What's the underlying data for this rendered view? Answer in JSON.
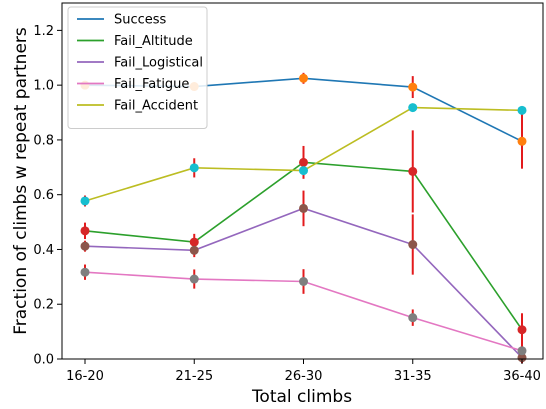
{
  "chart_data": {
    "type": "line",
    "xlabel": "Total climbs",
    "ylabel": "Fraction of climbs w repeat partners",
    "categories": [
      "16-20",
      "21-25",
      "26-30",
      "31-35",
      "36-40"
    ],
    "ylim": [
      0,
      1.3
    ],
    "yticks": [
      0.0,
      0.2,
      0.4,
      0.6,
      0.8,
      1.0,
      1.2
    ],
    "ytick_labels": [
      "0.0",
      "0.2",
      "0.4",
      "0.6",
      "0.8",
      "1.0",
      "1.2"
    ],
    "grid": false,
    "legend_position": "top-left",
    "series": [
      {
        "name": "Success",
        "color": "#1f77b4",
        "marker_color": "#ff7f0e",
        "values": [
          1.0,
          0.995,
          1.025,
          0.993,
          0.795
        ],
        "errors": [
          0.0,
          0.0,
          0.02,
          0.04,
          0.1
        ]
      },
      {
        "name": "Fail_Altitude",
        "color": "#2ca02c",
        "marker_color": "#d62728",
        "values": [
          0.468,
          0.427,
          0.718,
          0.685,
          0.107
        ],
        "errors": [
          0.03,
          0.03,
          0.06,
          0.15,
          0.06
        ]
      },
      {
        "name": "Fail_Logistical",
        "color": "#9467bd",
        "marker_color": "#8c564b",
        "values": [
          0.412,
          0.397,
          0.55,
          0.418,
          0.005
        ],
        "errors": [
          0.02,
          0.025,
          0.065,
          0.11,
          0.02
        ]
      },
      {
        "name": "Fail_Fatigue",
        "color": "#e377c2",
        "marker_color": "#7f7f7f",
        "values": [
          0.317,
          0.292,
          0.283,
          0.151,
          0.03
        ],
        "errors": [
          0.028,
          0.035,
          0.045,
          0.03,
          0.02
        ]
      },
      {
        "name": "Fail_Accident",
        "color": "#bcbd22",
        "marker_color": "#17becf",
        "values": [
          0.577,
          0.698,
          0.688,
          0.918,
          0.908
        ],
        "errors": [
          0.02,
          0.035,
          0.0,
          0.0,
          0.0
        ]
      }
    ],
    "errorbar_color": "#e31a1c"
  }
}
